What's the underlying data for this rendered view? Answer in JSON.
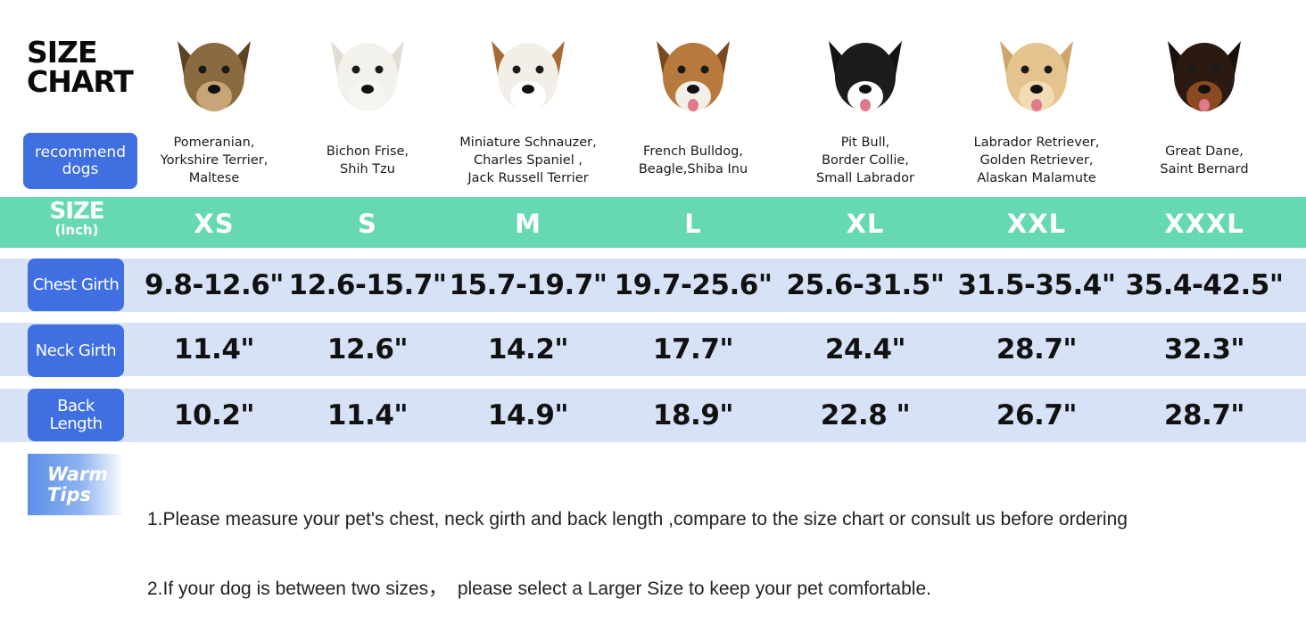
{
  "title": "SIZE\nCHART",
  "recommend_label": "recommend\ndogs",
  "size_label": {
    "main": "SIZE",
    "unit": "(inch)"
  },
  "colors": {
    "pill_blue": "#3f6fe0",
    "size_band": "#66d8b2",
    "row_band": "#d7e2f7"
  },
  "columns": [
    {
      "size": "XS",
      "breeds": "Pomeranian,\nYorkshire Terrier,\nMaltese",
      "dog_icon": "yorkshire-terrier-photo"
    },
    {
      "size": "S",
      "breeds": "Bichon Frise,\nShih Tzu",
      "dog_icon": "bichon-frise-photo"
    },
    {
      "size": "M",
      "breeds": "Miniature Schnauzer,\nCharles Spaniel ,\nJack Russell Terrier",
      "dog_icon": "jack-russell-photo"
    },
    {
      "size": "L",
      "breeds": "French Bulldog,\nBeagle,Shiba Inu",
      "dog_icon": "beagle-photo"
    },
    {
      "size": "XL",
      "breeds": "Pit Bull,\nBorder Collie,\nSmall Labrador",
      "dog_icon": "border-collie-photo"
    },
    {
      "size": "XXL",
      "breeds": "Labrador Retriever,\nGolden Retriever,\nAlaskan Malamute",
      "dog_icon": "golden-retriever-photo"
    },
    {
      "size": "XXXL",
      "breeds": "Great Dane,\nSaint Bernard",
      "dog_icon": "doberman-photo"
    }
  ],
  "rows": [
    {
      "label": "Chest Girth",
      "values": [
        "9.8-12.6\"",
        "12.6-15.7\"",
        "15.7-19.7\"",
        "19.7-25.6\"",
        "25.6-31.5\"",
        "31.5-35.4\"",
        "35.4-42.5\""
      ]
    },
    {
      "label": "Neck Girth",
      "values": [
        "11.4\"",
        "12.6\"",
        "14.2\"",
        "17.7\"",
        "24.4\"",
        "28.7\"",
        "32.3\""
      ]
    },
    {
      "label": "Back\nLength",
      "values": [
        "10.2\"",
        "11.4\"",
        "14.9\"",
        "18.9\"",
        "22.8 \"",
        "26.7\"",
        "28.7\""
      ]
    }
  ],
  "tips": {
    "badge": "Warm\nTips",
    "lines": [
      "1.Please measure your pet's chest, neck girth and back length ,compare to the size chart or consult us before ordering",
      "2.If your dog is between two sizes，  please select a Larger Size to keep your pet comfortable."
    ]
  }
}
